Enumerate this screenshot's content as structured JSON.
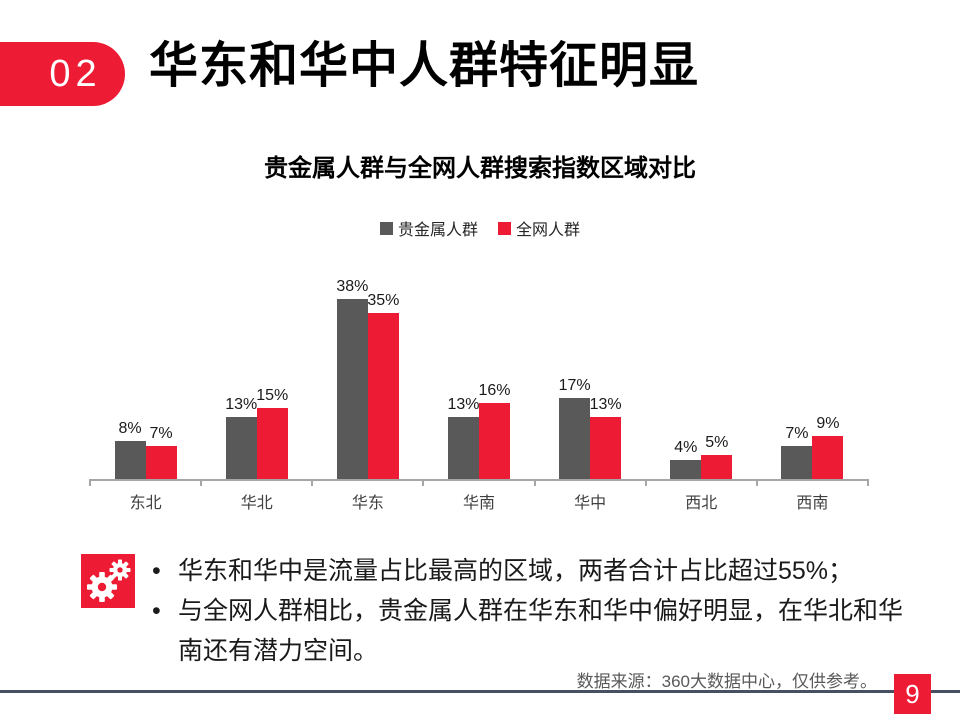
{
  "slide": {
    "section_number": "02",
    "title": "华东和华中人群特征明显",
    "page_number": "9",
    "source_note": "数据来源：360大数据中心，仅供参考。",
    "accent_color": "#ED1C34",
    "divider_color": "#474F63"
  },
  "insights": {
    "icon": "gears-icon",
    "bullets": [
      "华东和华中是流量占比最高的区域，两者合计占比超过55%；",
      "与全网人群相比，贵金属人群在华东和华中偏好明显，在华北和华南还有潜力空间。"
    ]
  },
  "chart_data": {
    "type": "bar",
    "title": "贵金属人群与全网人群搜索指数区域对比",
    "categories": [
      "东北",
      "华北",
      "华东",
      "华南",
      "华中",
      "西北",
      "西南"
    ],
    "series": [
      {
        "name": "贵金属人群",
        "color": "#595959",
        "values": [
          8,
          13,
          38,
          13,
          17,
          4,
          7
        ]
      },
      {
        "name": "全网人群",
        "color": "#ED1C34",
        "values": [
          7,
          15,
          35,
          16,
          13,
          5,
          9
        ]
      }
    ],
    "value_suffix": "%",
    "ylim": [
      0,
      40
    ],
    "xlabel": "",
    "ylabel": "",
    "grid": false,
    "legend_position": "top",
    "axis_color": "#A6A6A6"
  }
}
